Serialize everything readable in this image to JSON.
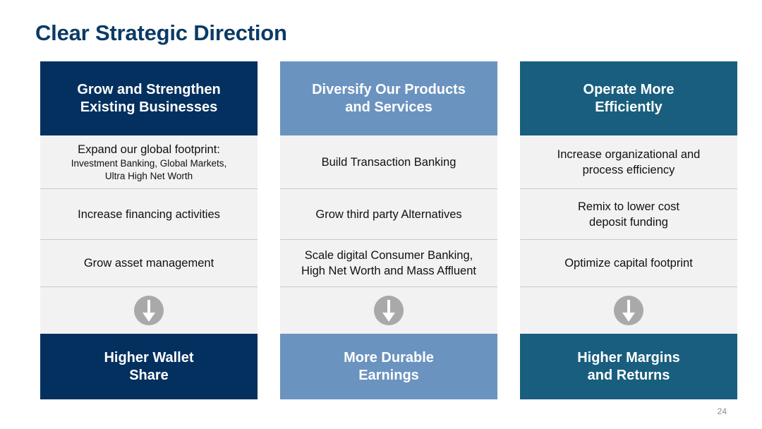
{
  "slide": {
    "title": "Clear Strategic Direction",
    "page_number": "24"
  },
  "columns": [
    {
      "header": "Grow and Strengthen\nExisting Businesses",
      "items": [
        {
          "main": "Expand our global footprint:",
          "sub": "Investment Banking, Global Markets,\nUltra High Net Worth"
        },
        {
          "main": "Increase financing activities"
        },
        {
          "main": "Grow asset management"
        }
      ],
      "outcome": "Higher Wallet\nShare",
      "color": "#04305f"
    },
    {
      "header": "Diversify Our Products\nand Services",
      "items": [
        {
          "main": "Build Transaction Banking"
        },
        {
          "main": "Grow third party Alternatives"
        },
        {
          "main": "Scale digital Consumer Banking,\nHigh Net Worth and Mass Affluent"
        }
      ],
      "outcome": "More Durable\nEarnings",
      "color": "#6b93bf"
    },
    {
      "header": "Operate More\nEfficiently",
      "items": [
        {
          "main": "Increase organizational and\nprocess efficiency"
        },
        {
          "main": "Remix to lower cost\ndeposit funding"
        },
        {
          "main": "Optimize capital footprint"
        }
      ],
      "outcome": "Higher Margins\nand Returns",
      "color": "#195e7e"
    }
  ],
  "icons": {
    "arrow": "arrow-down-circle-icon",
    "arrow_color": "#a9a9a9"
  }
}
